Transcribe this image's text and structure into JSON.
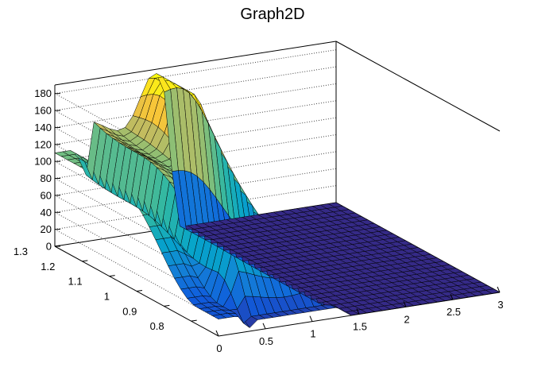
{
  "chart_data": {
    "type": "surface",
    "title": "Graph2D",
    "xlabel": "",
    "ylabel": "",
    "zlabel": "",
    "xlim": [
      0,
      3
    ],
    "ylim": [
      0.7,
      1.3
    ],
    "zlim": [
      0,
      190
    ],
    "x_ticks": [
      "0",
      "0.5",
      "1",
      "1.5",
      "2",
      "2.5",
      "3"
    ],
    "y_ticks": [
      "0.8",
      "0.9",
      "1",
      "1.1",
      "1.2",
      "1.3"
    ],
    "z_ticks": [
      "0",
      "20",
      "40",
      "60",
      "80",
      "100",
      "120",
      "140",
      "160",
      "180"
    ],
    "colormap": [
      "#352a87",
      "#0f5cdd",
      "#1481d6",
      "#06a4ca",
      "#2eb7a4",
      "#87bf77",
      "#d1bb59",
      "#fec832",
      "#f9fb0e"
    ],
    "grid": true,
    "features": [
      {
        "name": "left ridge",
        "x_range": [
          0,
          0.35
        ],
        "y_range": [
          0.75,
          1.3
        ],
        "z_max": 110
      },
      {
        "name": "central plateau",
        "x_range": [
          0.3,
          1.2
        ],
        "y_range": [
          0.7,
          1.3
        ],
        "z_max": 140
      },
      {
        "name": "rear peak",
        "x": 1.05,
        "y": 1.22,
        "z_max": 182
      },
      {
        "name": "flat floor",
        "x_range": [
          1.35,
          3
        ],
        "y_range": [
          0.7,
          1.3
        ],
        "z": 0
      }
    ]
  }
}
